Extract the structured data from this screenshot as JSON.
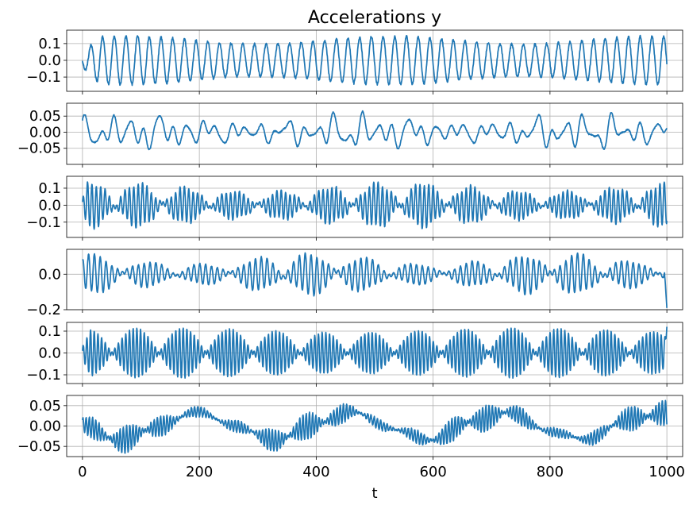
{
  "chart_data": {
    "type": "line",
    "title": "Accelerations y",
    "xlabel": "t",
    "xlim": [
      -27,
      1027
    ],
    "xticks": [
      0,
      200,
      400,
      600,
      800,
      1000
    ],
    "xtick_labels": [
      "0",
      "200",
      "400",
      "600",
      "800",
      "1000"
    ],
    "line_color": "#1f77b4",
    "grid": true,
    "panels": [
      {
        "name": "panel-1",
        "ylim": [
          -0.185,
          0.18
        ],
        "yticks": [
          -0.1,
          0.0,
          0.1
        ],
        "ytick_labels": [
          "−0.1",
          "0.0",
          "0.1"
        ],
        "signal": {
          "components": [
            {
              "amp": 0.12,
              "period": 20,
              "phase": 3.3
            }
          ],
          "envelope": {
            "base": 1.0,
            "amp": 0.2,
            "period": 450,
            "phase": 0.5
          },
          "start_ramp": 40,
          "noise": 0.015
        }
      },
      {
        "name": "panel-2",
        "ylim": [
          -0.1,
          0.09
        ],
        "yticks": [
          -0.05,
          0.0,
          0.05
        ],
        "ytick_labels": [
          "−0.05",
          "0.00",
          "0.05"
        ],
        "signal": {
          "components": [
            {
              "amp": 0.022,
              "period": 25,
              "phase": 0.3
            },
            {
              "amp": 0.016,
              "period": 43,
              "phase": 1.1
            },
            {
              "amp": 0.012,
              "period": 71,
              "phase": 2.0
            },
            {
              "amp": 0.009,
              "period": 17,
              "phase": 0.7
            }
          ],
          "envelope": {
            "base": 1.0,
            "amp": 0.3,
            "period": 380,
            "phase": 0.0
          },
          "start_ramp": 0,
          "noise": 0.004
        }
      },
      {
        "name": "panel-3",
        "ylim": [
          -0.19,
          0.17
        ],
        "yticks": [
          -0.1,
          0.0,
          0.1
        ],
        "ytick_labels": [
          "−0.1",
          "0.0",
          "0.1"
        ],
        "signal": {
          "components": [
            {
              "amp": 0.055,
              "period": 7.2,
              "phase": 0.0
            },
            {
              "amp": 0.05,
              "period": 7.9,
              "phase": 1.2
            },
            {
              "amp": 0.012,
              "period": 33,
              "phase": 0.4
            }
          ],
          "envelope": {
            "base": 1.0,
            "amp": 0.25,
            "period": 500,
            "phase": 1.0
          },
          "start_ramp": 10,
          "noise": 0.006
        }
      },
      {
        "name": "panel-4",
        "ylim": [
          -0.2,
          0.14
        ],
        "yticks": [
          -0.2,
          0.0
        ],
        "ytick_labels": [
          "−0.2",
          "0.0"
        ],
        "signal": {
          "components": [
            {
              "amp": 0.045,
              "period": 9.5,
              "phase": 0.5
            },
            {
              "amp": 0.04,
              "period": 10.6,
              "phase": 2.1
            },
            {
              "amp": 0.01,
              "period": 60,
              "phase": 0.2
            }
          ],
          "envelope": {
            "base": 1.0,
            "amp": 0.35,
            "period": 420,
            "phase": 2.0
          },
          "start_ramp": 0,
          "noise": 0.005,
          "end_value": -0.19
        }
      },
      {
        "name": "panel-5",
        "ylim": [
          -0.14,
          0.14
        ],
        "yticks": [
          -0.1,
          0.0,
          0.1
        ],
        "ytick_labels": [
          "−0.1",
          "0.0",
          "0.1"
        ],
        "signal": {
          "components": [
            {
              "amp": 0.055,
              "period": 6.1,
              "phase": 0.0
            },
            {
              "amp": 0.05,
              "period": 6.6,
              "phase": 0.8
            }
          ],
          "envelope": {
            "base": 1.0,
            "amp": 0.1,
            "period": 600,
            "phase": 0.0
          },
          "start_ramp": 20,
          "noise": 0.004,
          "end_value": 0.12
        }
      },
      {
        "name": "panel-6",
        "ylim": [
          -0.075,
          0.075
        ],
        "yticks": [
          -0.05,
          0.0,
          0.05
        ],
        "ytick_labels": [
          "−0.05",
          "0.00",
          "0.05"
        ],
        "signal": {
          "components": [
            {
              "amp": 0.012,
              "period": 5.3,
              "phase": 0.0
            },
            {
              "amp": 0.01,
              "period": 5.8,
              "phase": 1.5
            }
          ],
          "envelope": {
            "base": 1.0,
            "amp": 0.5,
            "period": 300,
            "phase": 0.0
          },
          "drift": [
            {
              "amp": 0.03,
              "period": 260,
              "phase": 3.1
            },
            {
              "amp": 0.006,
              "period": 90,
              "phase": 0.5
            }
          ],
          "start_ramp": 0,
          "noise": 0.004
        }
      }
    ]
  }
}
